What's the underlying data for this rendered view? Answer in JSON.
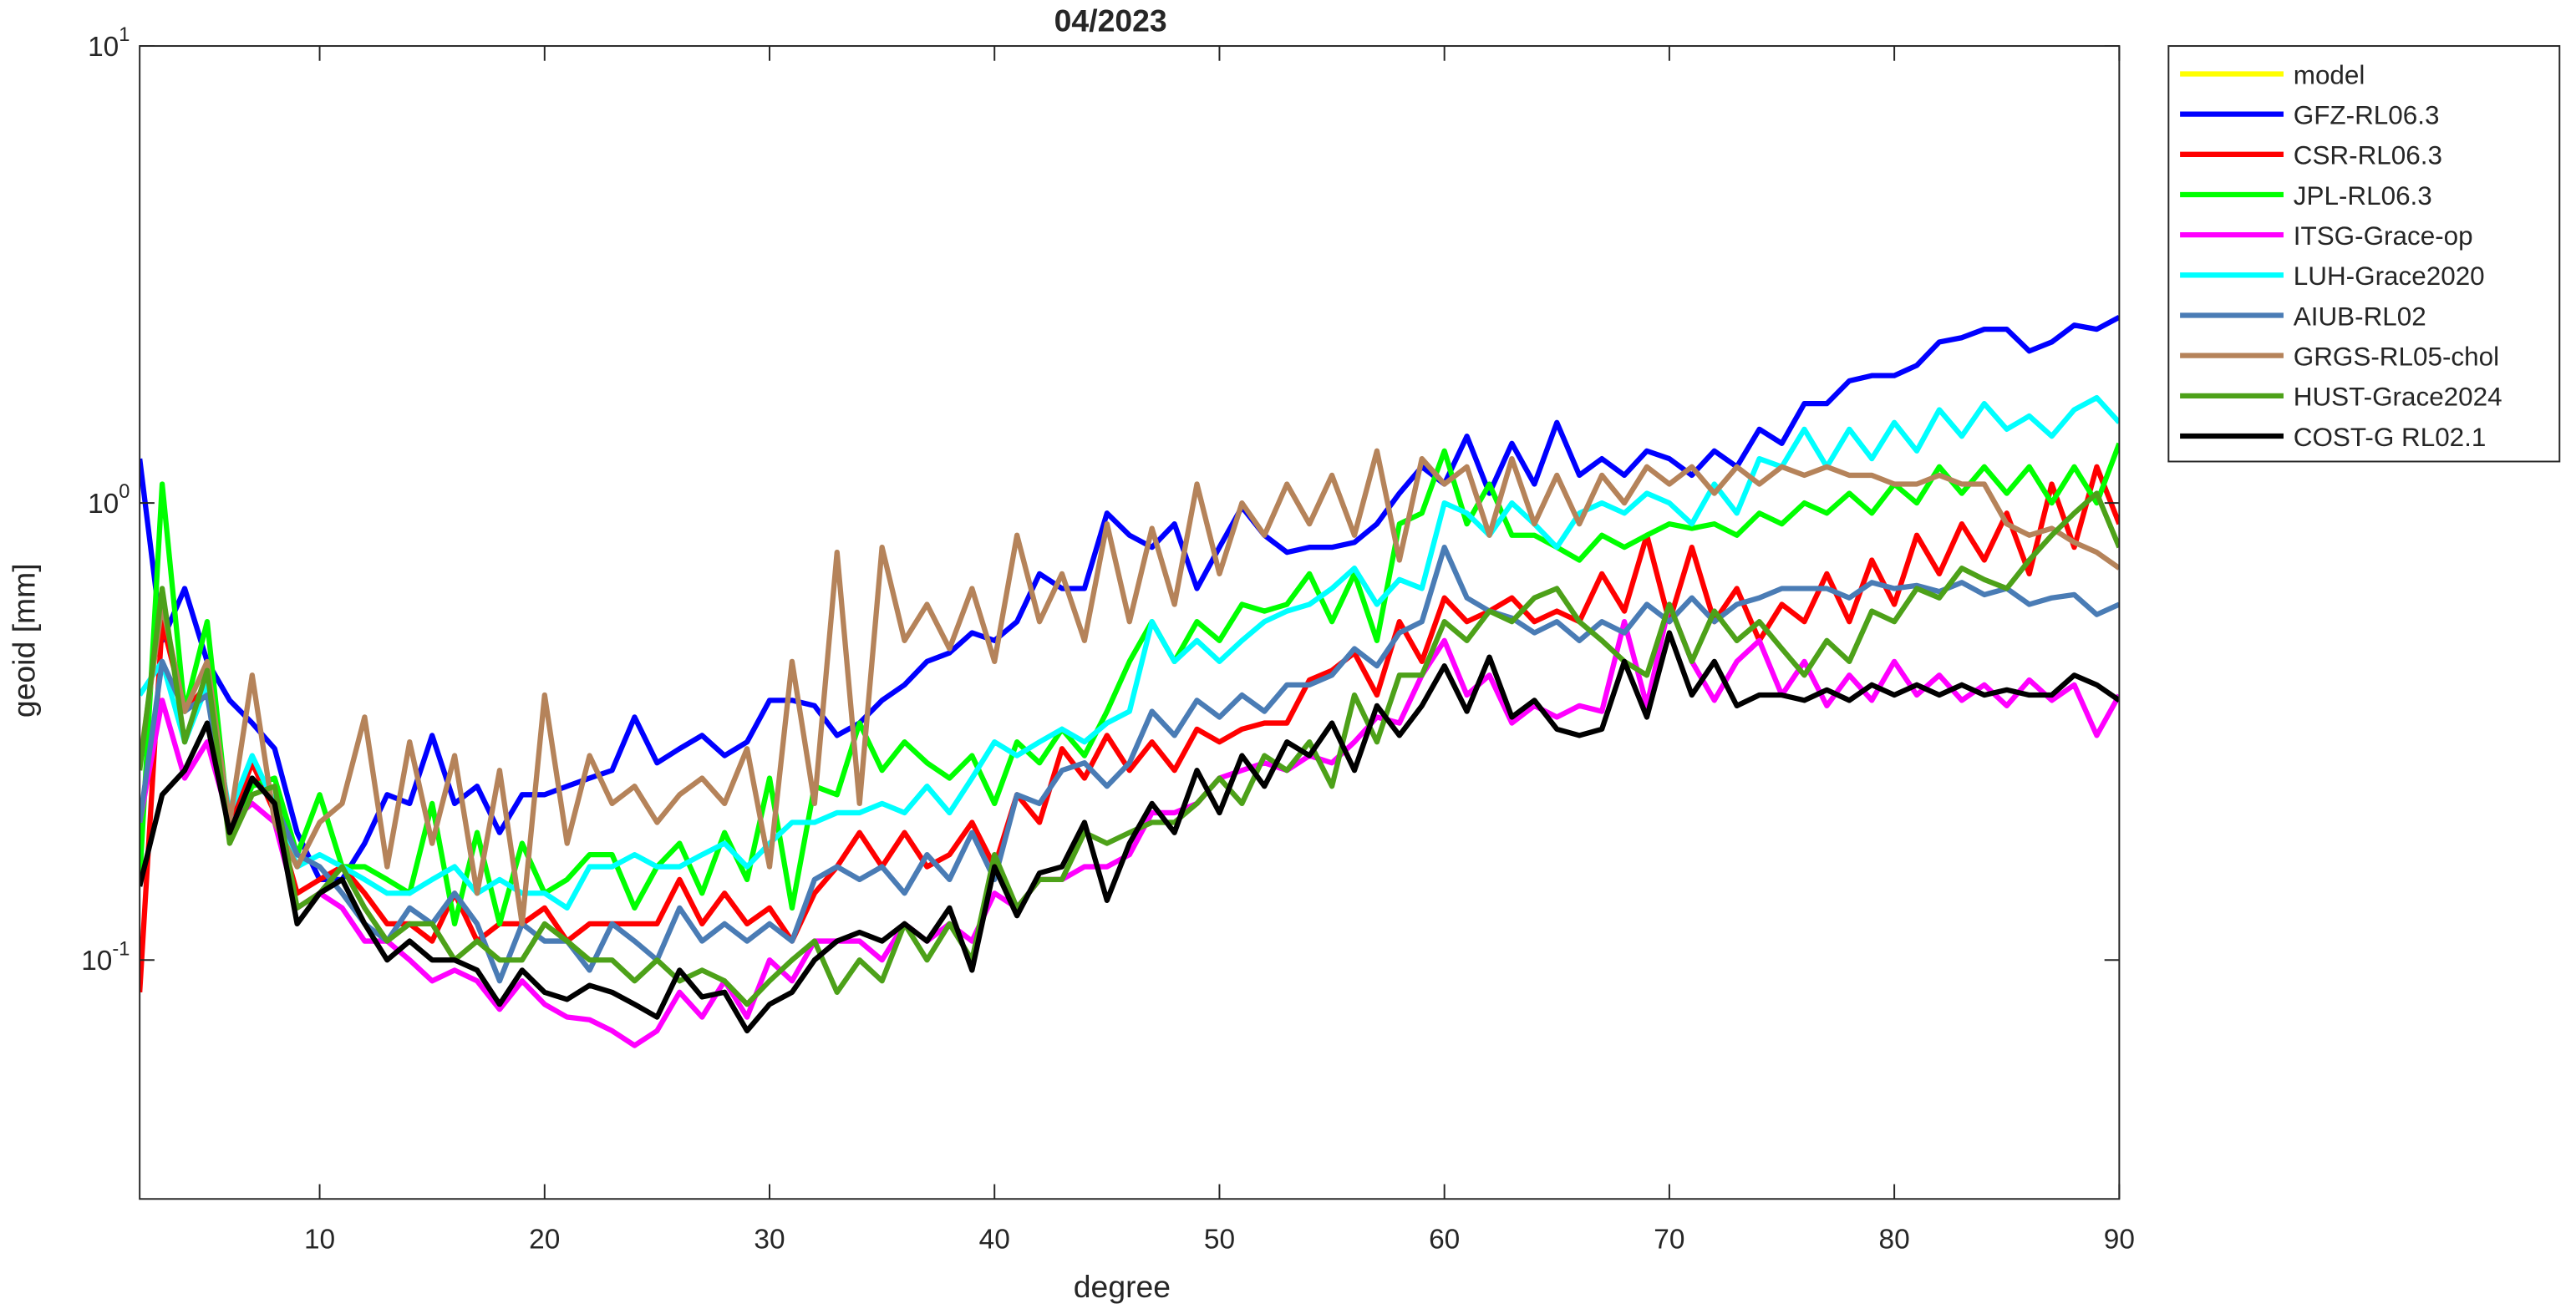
{
  "chart_data": {
    "type": "line",
    "title": "04/2023",
    "xlabel": "degree",
    "ylabel": "geoid [mm]",
    "yscale": "log",
    "grid": false,
    "legend": "outside-right",
    "xlim": [
      2,
      90
    ],
    "xticks": [
      10,
      20,
      30,
      40,
      50,
      60,
      70,
      80,
      90
    ],
    "ylim": [
      0.03,
      10
    ],
    "yticks": [
      {
        "value": 0.1,
        "label": "10",
        "exponent": "-1"
      },
      {
        "value": 1,
        "label": "10",
        "exponent": "0"
      },
      {
        "value": 10,
        "label": "10",
        "exponent": "1"
      }
    ],
    "x": [
      2,
      3,
      4,
      5,
      6,
      7,
      8,
      9,
      10,
      11,
      12,
      13,
      14,
      15,
      16,
      17,
      18,
      19,
      20,
      21,
      22,
      23,
      24,
      25,
      26,
      27,
      28,
      29,
      30,
      31,
      32,
      33,
      34,
      35,
      36,
      37,
      38,
      39,
      40,
      41,
      42,
      43,
      44,
      45,
      46,
      47,
      48,
      49,
      50,
      51,
      52,
      53,
      54,
      55,
      56,
      57,
      58,
      59,
      60,
      61,
      62,
      63,
      64,
      65,
      66,
      67,
      68,
      69,
      70,
      71,
      72,
      73,
      74,
      75,
      76,
      77,
      78,
      79,
      80,
      81,
      82,
      83,
      84,
      85,
      86,
      87,
      88,
      89,
      90
    ],
    "series": [
      {
        "name": "model",
        "color": "#ffff00",
        "values": [
          null,
          null,
          null,
          null,
          null,
          null,
          null,
          null,
          null,
          null,
          null,
          null,
          null,
          null,
          null,
          null,
          null,
          null,
          null,
          null,
          null,
          null,
          null,
          null,
          null,
          null,
          null,
          null,
          null,
          null,
          null,
          null,
          null,
          null,
          null,
          null,
          null,
          null,
          null,
          null,
          null,
          null,
          null,
          null,
          null,
          null,
          null,
          null,
          null,
          null,
          null,
          null,
          null,
          null,
          null,
          null,
          null,
          null,
          null,
          null,
          null,
          null,
          null,
          null,
          null,
          null,
          null,
          null,
          null,
          null,
          null,
          null,
          null,
          null,
          null,
          null,
          null,
          null,
          null,
          null,
          null,
          null,
          null,
          null,
          null,
          null,
          null,
          null,
          null
        ]
      },
      {
        "name": "GFZ-RL06.3",
        "color": "#0000ff",
        "values": [
          1.25,
          0.5,
          0.65,
          0.45,
          0.37,
          0.33,
          0.29,
          0.19,
          0.15,
          0.15,
          0.18,
          0.23,
          0.22,
          0.31,
          0.22,
          0.24,
          0.19,
          0.23,
          0.23,
          0.24,
          0.25,
          0.26,
          0.34,
          0.27,
          0.29,
          0.31,
          0.28,
          0.3,
          0.37,
          0.37,
          0.36,
          0.31,
          0.33,
          0.37,
          0.4,
          0.45,
          0.47,
          0.52,
          0.5,
          0.55,
          0.7,
          0.65,
          0.65,
          0.95,
          0.85,
          0.8,
          0.9,
          0.65,
          0.8,
          0.98,
          0.85,
          0.78,
          0.8,
          0.8,
          0.82,
          0.9,
          1.05,
          1.2,
          1.1,
          1.4,
          1.05,
          1.35,
          1.1,
          1.5,
          1.15,
          1.25,
          1.15,
          1.3,
          1.25,
          1.15,
          1.3,
          1.2,
          1.45,
          1.35,
          1.65,
          1.65,
          1.85,
          1.9,
          1.9,
          2.0,
          2.25,
          2.3,
          2.4,
          2.4,
          2.15,
          2.25,
          2.45,
          2.4,
          2.55
        ]
      },
      {
        "name": "CSR-RL06.3",
        "color": "#ff0000",
        "values": [
          0.085,
          0.55,
          0.35,
          0.4,
          0.2,
          0.27,
          0.21,
          0.14,
          0.15,
          0.16,
          0.14,
          0.12,
          0.12,
          0.11,
          0.14,
          0.11,
          0.12,
          0.12,
          0.13,
          0.11,
          0.12,
          0.12,
          0.12,
          0.12,
          0.15,
          0.12,
          0.14,
          0.12,
          0.13,
          0.11,
          0.14,
          0.16,
          0.19,
          0.16,
          0.19,
          0.16,
          0.17,
          0.2,
          0.16,
          0.23,
          0.2,
          0.29,
          0.25,
          0.31,
          0.26,
          0.3,
          0.26,
          0.32,
          0.3,
          0.32,
          0.33,
          0.33,
          0.41,
          0.43,
          0.47,
          0.38,
          0.55,
          0.45,
          0.62,
          0.55,
          0.58,
          0.62,
          0.55,
          0.58,
          0.55,
          0.7,
          0.58,
          0.85,
          0.55,
          0.8,
          0.55,
          0.65,
          0.5,
          0.6,
          0.55,
          0.7,
          0.55,
          0.75,
          0.6,
          0.85,
          0.7,
          0.9,
          0.75,
          0.95,
          0.7,
          1.1,
          0.8,
          1.2,
          0.9
        ]
      },
      {
        "name": "JPL-RL06.3",
        "color": "#00ff00",
        "values": [
          0.15,
          1.1,
          0.35,
          0.55,
          0.19,
          0.24,
          0.25,
          0.17,
          0.23,
          0.16,
          0.16,
          0.15,
          0.14,
          0.22,
          0.12,
          0.19,
          0.12,
          0.18,
          0.14,
          0.15,
          0.17,
          0.17,
          0.13,
          0.16,
          0.18,
          0.14,
          0.19,
          0.15,
          0.25,
          0.13,
          0.24,
          0.23,
          0.33,
          0.26,
          0.3,
          0.27,
          0.25,
          0.28,
          0.22,
          0.3,
          0.27,
          0.32,
          0.28,
          0.35,
          0.45,
          0.55,
          0.45,
          0.55,
          0.5,
          0.6,
          0.58,
          0.6,
          0.7,
          0.55,
          0.7,
          0.5,
          0.9,
          0.95,
          1.3,
          0.9,
          1.1,
          0.85,
          0.85,
          0.8,
          0.75,
          0.85,
          0.8,
          0.85,
          0.9,
          0.88,
          0.9,
          0.85,
          0.95,
          0.9,
          1.0,
          0.95,
          1.05,
          0.95,
          1.1,
          1.0,
          1.2,
          1.05,
          1.2,
          1.05,
          1.2,
          1.0,
          1.2,
          1.0,
          1.35
        ]
      },
      {
        "name": "ITSG-Grace-op",
        "color": "#ff00ff",
        "values": [
          0.2,
          0.37,
          0.25,
          0.3,
          0.2,
          0.22,
          0.2,
          0.13,
          0.14,
          0.13,
          0.11,
          0.11,
          0.1,
          0.09,
          0.095,
          0.09,
          0.078,
          0.09,
          0.08,
          0.075,
          0.074,
          0.07,
          0.065,
          0.07,
          0.085,
          0.075,
          0.09,
          0.075,
          0.1,
          0.09,
          0.11,
          0.11,
          0.11,
          0.1,
          0.12,
          0.11,
          0.12,
          0.11,
          0.14,
          0.13,
          0.15,
          0.15,
          0.16,
          0.16,
          0.17,
          0.21,
          0.21,
          0.22,
          0.25,
          0.26,
          0.27,
          0.26,
          0.28,
          0.27,
          0.3,
          0.34,
          0.33,
          0.42,
          0.5,
          0.38,
          0.42,
          0.33,
          0.36,
          0.34,
          0.36,
          0.35,
          0.55,
          0.36,
          0.6,
          0.45,
          0.37,
          0.45,
          0.5,
          0.38,
          0.45,
          0.36,
          0.42,
          0.37,
          0.45,
          0.38,
          0.42,
          0.37,
          0.4,
          0.36,
          0.41,
          0.37,
          0.4,
          0.31,
          0.38
        ]
      },
      {
        "name": "LUH-Grace2020",
        "color": "#00ffff",
        "values": [
          0.38,
          0.45,
          0.3,
          0.4,
          0.21,
          0.28,
          0.22,
          0.16,
          0.17,
          0.16,
          0.15,
          0.14,
          0.14,
          0.15,
          0.16,
          0.14,
          0.15,
          0.14,
          0.14,
          0.13,
          0.16,
          0.16,
          0.17,
          0.16,
          0.16,
          0.17,
          0.18,
          0.16,
          0.18,
          0.2,
          0.2,
          0.21,
          0.21,
          0.22,
          0.21,
          0.24,
          0.21,
          0.25,
          0.3,
          0.28,
          0.3,
          0.32,
          0.3,
          0.33,
          0.35,
          0.55,
          0.45,
          0.5,
          0.45,
          0.5,
          0.55,
          0.58,
          0.6,
          0.65,
          0.72,
          0.6,
          0.68,
          0.65,
          1.0,
          0.95,
          0.85,
          1.0,
          0.9,
          0.8,
          0.95,
          1.0,
          0.95,
          1.05,
          1.0,
          0.9,
          1.1,
          0.95,
          1.25,
          1.2,
          1.45,
          1.2,
          1.45,
          1.25,
          1.5,
          1.3,
          1.6,
          1.4,
          1.65,
          1.45,
          1.55,
          1.4,
          1.6,
          1.7,
          1.5
        ]
      },
      {
        "name": "AIUB-RL02",
        "color": "#4a7cb5",
        "values": [
          0.2,
          0.45,
          0.35,
          0.38,
          0.19,
          0.25,
          0.22,
          0.17,
          0.16,
          0.14,
          0.12,
          0.11,
          0.13,
          0.12,
          0.14,
          0.12,
          0.09,
          0.12,
          0.11,
          0.11,
          0.095,
          0.12,
          0.11,
          0.1,
          0.13,
          0.11,
          0.12,
          0.11,
          0.12,
          0.11,
          0.15,
          0.16,
          0.15,
          0.16,
          0.14,
          0.17,
          0.15,
          0.19,
          0.15,
          0.23,
          0.22,
          0.26,
          0.27,
          0.24,
          0.27,
          0.35,
          0.31,
          0.37,
          0.34,
          0.38,
          0.35,
          0.4,
          0.4,
          0.42,
          0.48,
          0.44,
          0.52,
          0.55,
          0.8,
          0.62,
          0.58,
          0.56,
          0.52,
          0.55,
          0.5,
          0.55,
          0.52,
          0.6,
          0.55,
          0.62,
          0.55,
          0.6,
          0.62,
          0.65,
          0.65,
          0.65,
          0.62,
          0.67,
          0.65,
          0.66,
          0.64,
          0.67,
          0.63,
          0.65,
          0.6,
          0.62,
          0.63,
          0.57,
          0.6
        ]
      },
      {
        "name": "GRGS-RL05-chol",
        "color": "#b5835a",
        "values": [
          0.27,
          0.6,
          0.35,
          0.45,
          0.2,
          0.42,
          0.2,
          0.16,
          0.2,
          0.22,
          0.34,
          0.16,
          0.3,
          0.18,
          0.28,
          0.14,
          0.26,
          0.12,
          0.38,
          0.18,
          0.28,
          0.22,
          0.24,
          0.2,
          0.23,
          0.25,
          0.22,
          0.29,
          0.16,
          0.45,
          0.22,
          0.78,
          0.22,
          0.8,
          0.5,
          0.6,
          0.48,
          0.65,
          0.45,
          0.85,
          0.55,
          0.7,
          0.5,
          0.9,
          0.55,
          0.88,
          0.6,
          1.1,
          0.7,
          1.0,
          0.85,
          1.1,
          0.9,
          1.15,
          0.85,
          1.3,
          0.75,
          1.25,
          1.1,
          1.2,
          0.85,
          1.25,
          0.9,
          1.15,
          0.9,
          1.15,
          1.0,
          1.2,
          1.1,
          1.2,
          1.05,
          1.2,
          1.1,
          1.2,
          1.15,
          1.2,
          1.15,
          1.15,
          1.1,
          1.1,
          1.15,
          1.1,
          1.1,
          0.9,
          0.85,
          0.88,
          0.82,
          0.78,
          0.72
        ]
      },
      {
        "name": "HUST-Grace2024",
        "color": "#4da119",
        "values": [
          0.26,
          0.65,
          0.3,
          0.43,
          0.18,
          0.23,
          0.24,
          0.13,
          0.14,
          0.16,
          0.13,
          0.11,
          0.12,
          0.12,
          0.1,
          0.11,
          0.1,
          0.1,
          0.12,
          0.11,
          0.1,
          0.1,
          0.09,
          0.1,
          0.09,
          0.095,
          0.09,
          0.08,
          0.09,
          0.1,
          0.11,
          0.085,
          0.1,
          0.09,
          0.12,
          0.1,
          0.12,
          0.1,
          0.17,
          0.13,
          0.15,
          0.15,
          0.19,
          0.18,
          0.19,
          0.2,
          0.2,
          0.22,
          0.25,
          0.22,
          0.28,
          0.26,
          0.3,
          0.24,
          0.38,
          0.3,
          0.42,
          0.42,
          0.55,
          0.5,
          0.58,
          0.55,
          0.62,
          0.65,
          0.55,
          0.5,
          0.45,
          0.42,
          0.6,
          0.45,
          0.58,
          0.5,
          0.55,
          0.48,
          0.42,
          0.5,
          0.45,
          0.58,
          0.55,
          0.65,
          0.62,
          0.72,
          0.68,
          0.65,
          0.75,
          0.85,
          0.95,
          1.05,
          0.8
        ]
      },
      {
        "name": "COST-G RL02.1",
        "color": "#000000",
        "values": [
          0.145,
          0.23,
          0.26,
          0.33,
          0.19,
          0.25,
          0.22,
          0.12,
          0.14,
          0.15,
          0.12,
          0.1,
          0.11,
          0.1,
          0.1,
          0.095,
          0.08,
          0.095,
          0.085,
          0.082,
          0.088,
          0.085,
          0.08,
          0.075,
          0.095,
          0.083,
          0.085,
          0.07,
          0.08,
          0.085,
          0.1,
          0.11,
          0.115,
          0.11,
          0.12,
          0.11,
          0.13,
          0.095,
          0.16,
          0.125,
          0.155,
          0.16,
          0.2,
          0.135,
          0.18,
          0.22,
          0.19,
          0.26,
          0.21,
          0.28,
          0.24,
          0.3,
          0.28,
          0.33,
          0.26,
          0.36,
          0.31,
          0.36,
          0.44,
          0.35,
          0.46,
          0.34,
          0.37,
          0.32,
          0.31,
          0.32,
          0.45,
          0.34,
          0.52,
          0.38,
          0.45,
          0.36,
          0.38,
          0.38,
          0.37,
          0.39,
          0.37,
          0.4,
          0.38,
          0.4,
          0.38,
          0.4,
          0.38,
          0.39,
          0.38,
          0.38,
          0.42,
          0.4,
          0.37
        ]
      }
    ]
  }
}
